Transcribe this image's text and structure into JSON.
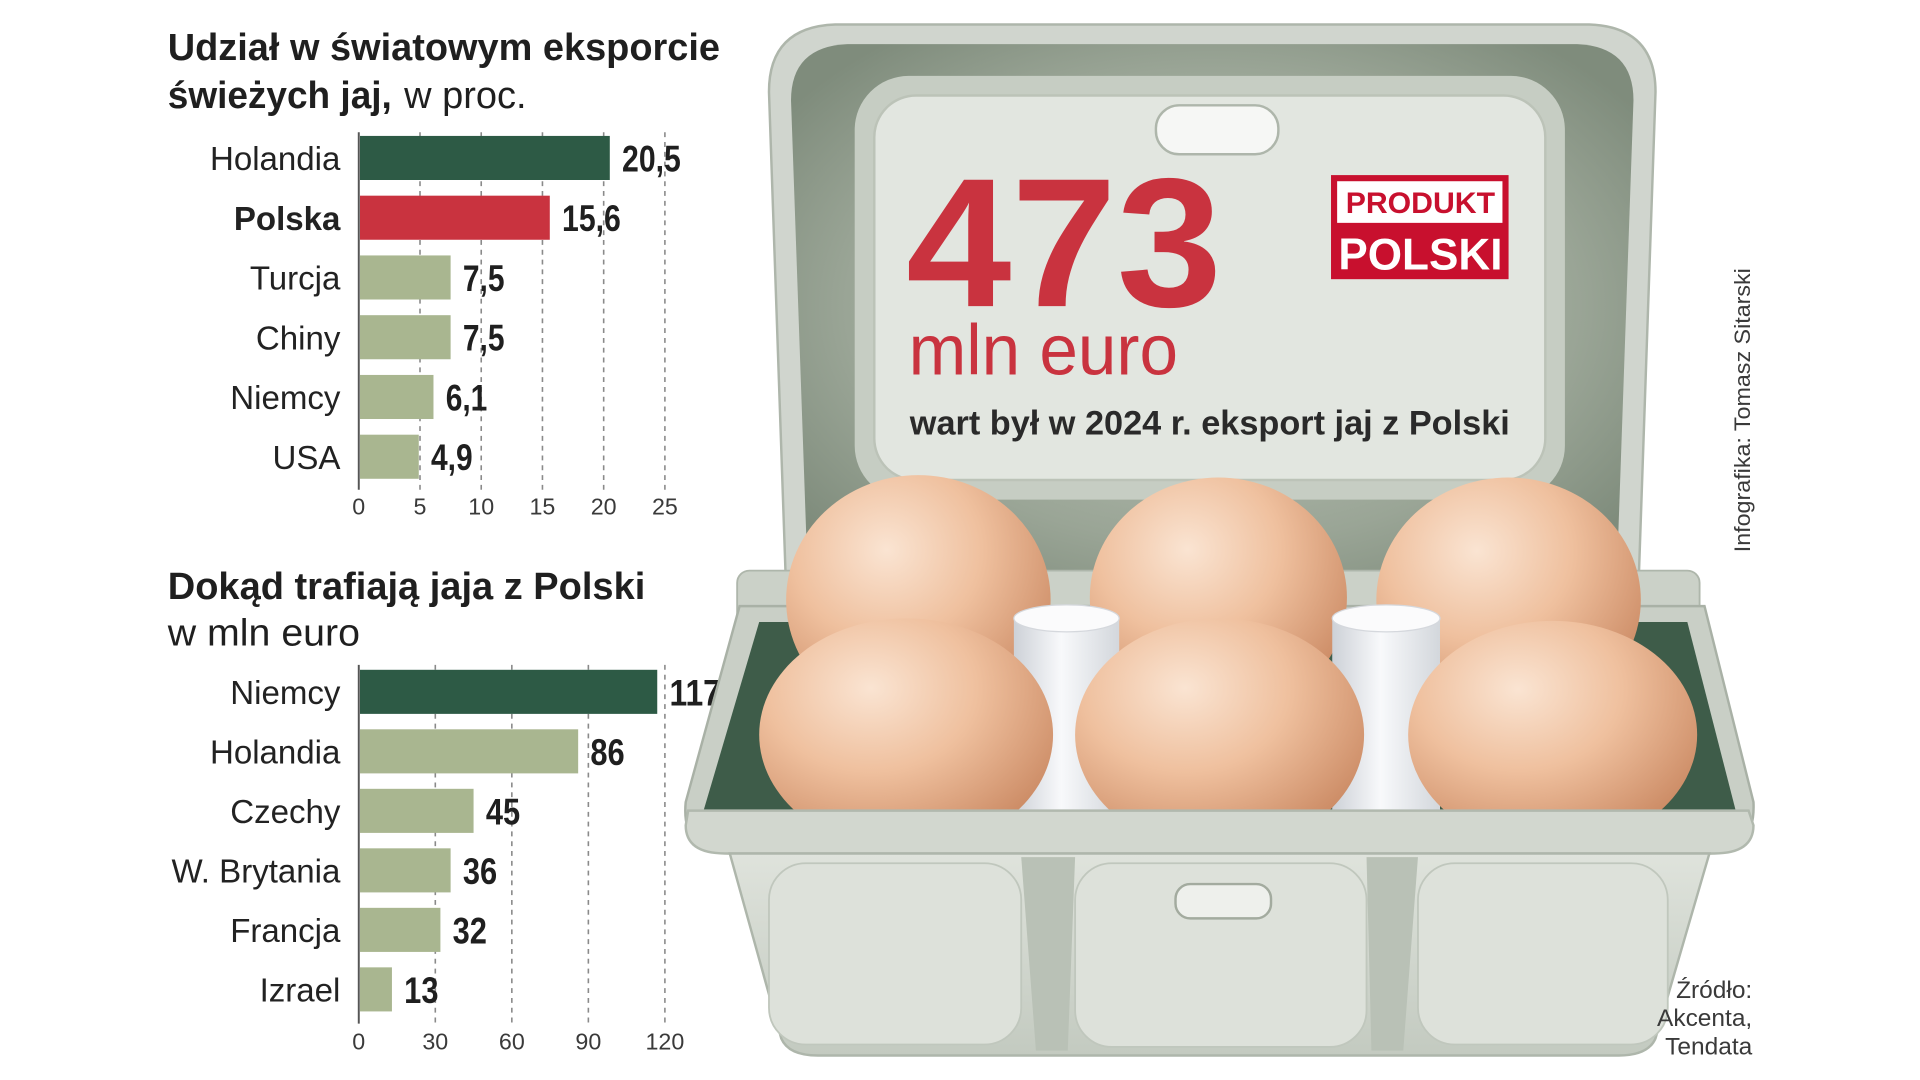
{
  "chart_data": [
    {
      "type": "bar",
      "orientation": "horizontal",
      "title_lines": [
        "Udział w światowym eksporcie",
        "świeżych jaj,"
      ],
      "unit": "w proc.",
      "categories": [
        "Holandia",
        "Polska",
        "Turcja",
        "Chiny",
        "Niemcy",
        "USA"
      ],
      "values": [
        20.5,
        15.6,
        7.5,
        7.5,
        6.1,
        4.9
      ],
      "value_labels": [
        "20,5",
        "15,6",
        "7,5",
        "7,5",
        "6,1",
        "4,9"
      ],
      "bar_colors": [
        "#2d5a45",
        "#c9333f",
        "#a9b690",
        "#a9b690",
        "#a9b690",
        "#a9b690"
      ],
      "emphasis": [
        false,
        true,
        false,
        false,
        false,
        false
      ],
      "xticks": [
        0,
        5,
        10,
        15,
        20,
        25
      ],
      "xlim": [
        0,
        25
      ],
      "grid": true
    },
    {
      "type": "bar",
      "orientation": "horizontal",
      "title_lines": [
        "Dokąd trafiają jaja z Polski"
      ],
      "unit": "w mln euro",
      "categories": [
        "Niemcy",
        "Holandia",
        "Czechy",
        "W. Brytania",
        "Francja",
        "Izrael"
      ],
      "values": [
        117,
        86,
        45,
        36,
        32,
        13
      ],
      "value_labels": [
        "117",
        "86",
        "45",
        "36",
        "32",
        "13"
      ],
      "bar_colors": [
        "#2d5a45",
        "#a9b690",
        "#a9b690",
        "#a9b690",
        "#a9b690",
        "#a9b690"
      ],
      "emphasis": [
        false,
        false,
        false,
        false,
        false,
        false
      ],
      "xticks": [
        0,
        30,
        60,
        90,
        120
      ],
      "xlim": [
        0,
        120
      ],
      "grid": true
    }
  ],
  "headline": {
    "value": "473",
    "unit": "mln euro",
    "caption": "wart był w 2024 r. eksport jaj z Polski"
  },
  "badge": {
    "line1": "PRODUKT",
    "line2": "POLSKI"
  },
  "credit": "Infografika: Tomasz Sitarski",
  "source_lines": [
    "Źródło:",
    "Akcenta,",
    "Tendata"
  ],
  "colors": {
    "accent_red": "#c9333f",
    "dark_green": "#2d5a45",
    "olive": "#a9b690",
    "badge_red": "#c8102e"
  }
}
